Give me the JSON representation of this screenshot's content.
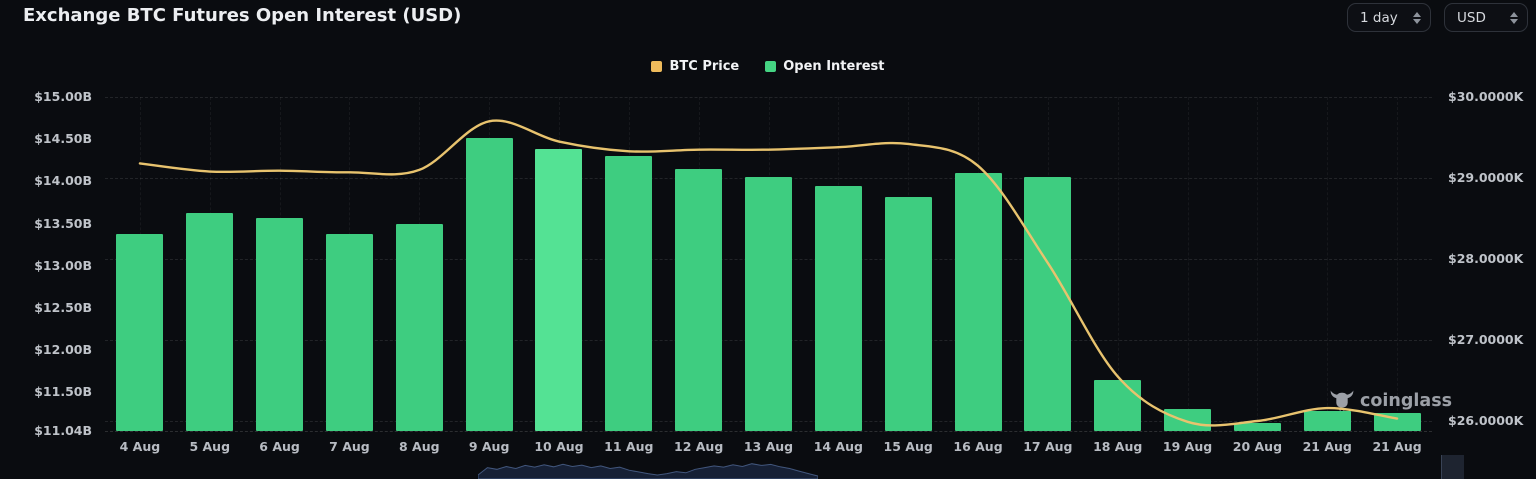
{
  "header": {
    "title": "Exchange BTC Futures Open Interest (USD)",
    "interval_value": "1 day",
    "currency_value": "USD"
  },
  "legend": {
    "items": [
      {
        "label": "BTC Price",
        "color": "#eebb5c"
      },
      {
        "label": "Open Interest",
        "color": "#45d483"
      }
    ]
  },
  "watermark": {
    "text": "coinglass"
  },
  "chart_data": {
    "type": "bar",
    "title": "Exchange BTC Futures Open Interest (USD)",
    "legend_position": "top-center",
    "categories": [
      "4 Aug",
      "5 Aug",
      "6 Aug",
      "7 Aug",
      "8 Aug",
      "9 Aug",
      "10 Aug",
      "11 Aug",
      "12 Aug",
      "13 Aug",
      "14 Aug",
      "15 Aug",
      "16 Aug",
      "17 Aug",
      "18 Aug",
      "19 Aug",
      "20 Aug",
      "21 Aug",
      "21 Aug"
    ],
    "series": [
      {
        "name": "Open Interest",
        "type": "bar",
        "axis": "left",
        "unit": "USD billions",
        "color": "#3ecd80",
        "highlight_index": 6,
        "highlight_color": "#54e294",
        "values": [
          13.38,
          13.62,
          13.57,
          13.38,
          13.5,
          14.51,
          14.38,
          14.3,
          14.15,
          14.05,
          13.94,
          13.82,
          14.1,
          14.05,
          11.65,
          11.3,
          11.13,
          11.28,
          11.25
        ]
      },
      {
        "name": "BTC Price",
        "type": "line",
        "axis": "right",
        "unit": "USD thousands",
        "color": "#e8c36e",
        "values": [
          29.18,
          29.08,
          29.09,
          29.07,
          29.1,
          29.7,
          29.45,
          29.33,
          29.35,
          29.35,
          29.38,
          29.42,
          29.15,
          27.95,
          26.55,
          25.99,
          26.0,
          26.16,
          26.03
        ]
      }
    ],
    "left_axis": {
      "unit": "USD billions",
      "min": 11.04,
      "max": 15.0,
      "tick_values": [
        15.0,
        14.5,
        14.0,
        13.5,
        13.0,
        12.5,
        12.0,
        11.5,
        11.04
      ],
      "tick_labels": [
        "$15.00B",
        "$14.50B",
        "$14.00B",
        "$13.50B",
        "$13.00B",
        "$12.50B",
        "$12.00B",
        "$11.50B",
        "$11.04B"
      ]
    },
    "right_axis": {
      "unit": "USD thousands",
      "min": 26.0,
      "max": 30.0,
      "tick_values": [
        30,
        29,
        28,
        27,
        26
      ],
      "tick_labels": [
        "$30.0000K",
        "$29.0000K",
        "$28.0000K",
        "$27.0000K",
        "$26.0000K"
      ]
    },
    "grid": {
      "horizontal_dashed": true,
      "vertical_dashed": true
    }
  },
  "navigator": {
    "heights": [
      0.12,
      0.55,
      0.45,
      0.62,
      0.5,
      0.68,
      0.58,
      0.72,
      0.6,
      0.75,
      0.62,
      0.7,
      0.55,
      0.65,
      0.5,
      0.58,
      0.4,
      0.3,
      0.2,
      0.12,
      0.2,
      0.32,
      0.25,
      0.45,
      0.55,
      0.65,
      0.58,
      0.72,
      0.62,
      0.78,
      0.68,
      0.74,
      0.6,
      0.5,
      0.35,
      0.2,
      0.06
    ]
  }
}
